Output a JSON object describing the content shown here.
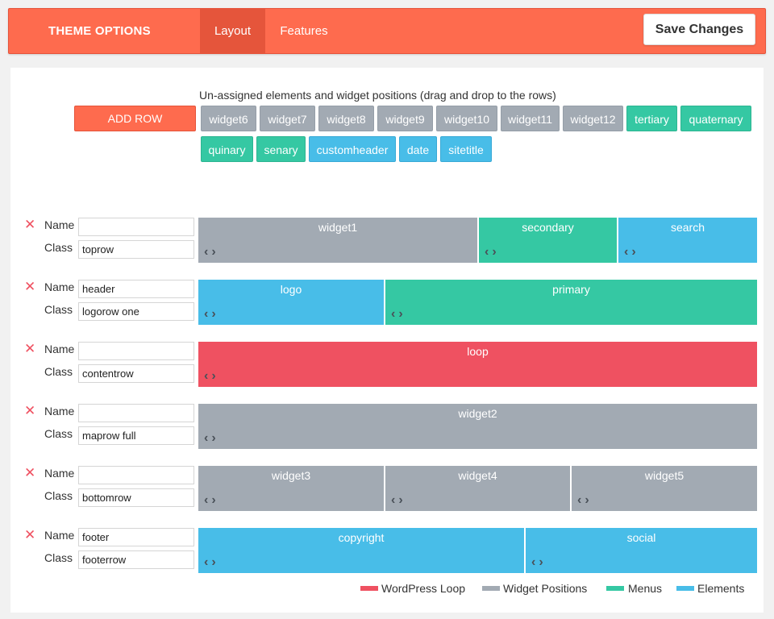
{
  "header": {
    "brand": "THEME OPTIONS",
    "tabs": [
      {
        "label": "Layout",
        "active": true
      },
      {
        "label": "Features",
        "active": false
      }
    ],
    "save_label": "Save Changes"
  },
  "pool": {
    "title": "Un-assigned elements and widget positions (drag and drop to the rows)",
    "add_row_label": "ADD ROW",
    "chips": [
      {
        "label": "widget6",
        "type": "widget"
      },
      {
        "label": "widget7",
        "type": "widget"
      },
      {
        "label": "widget8",
        "type": "widget"
      },
      {
        "label": "widget9",
        "type": "widget"
      },
      {
        "label": "widget10",
        "type": "widget"
      },
      {
        "label": "widget11",
        "type": "widget"
      },
      {
        "label": "widget12",
        "type": "widget"
      },
      {
        "label": "tertiary",
        "type": "menu"
      },
      {
        "label": "quaternary",
        "type": "menu"
      },
      {
        "label": "quinary",
        "type": "menu"
      },
      {
        "label": "senary",
        "type": "menu"
      },
      {
        "label": "customheader",
        "type": "element"
      },
      {
        "label": "date",
        "type": "element"
      },
      {
        "label": "sitetitle",
        "type": "element"
      }
    ]
  },
  "rows": [
    {
      "name_label": "Name",
      "class_label": "Class",
      "name": "",
      "class": "toprow",
      "blocks": [
        {
          "label": "widget1",
          "type": "widget"
        },
        {
          "label": "secondary",
          "type": "menu"
        },
        {
          "label": "search",
          "type": "element"
        }
      ]
    },
    {
      "name_label": "Name",
      "class_label": "Class",
      "name": "header",
      "class": "logorow one",
      "blocks": [
        {
          "label": "logo",
          "type": "element"
        },
        {
          "label": "primary",
          "type": "menu"
        }
      ]
    },
    {
      "name_label": "Name",
      "class_label": "Class",
      "name": "",
      "class": "contentrow",
      "blocks": [
        {
          "label": "loop",
          "type": "loop"
        }
      ]
    },
    {
      "name_label": "Name",
      "class_label": "Class",
      "name": "",
      "class": "maprow full",
      "blocks": [
        {
          "label": "widget2",
          "type": "widget"
        }
      ]
    },
    {
      "name_label": "Name",
      "class_label": "Class",
      "name": "",
      "class": "bottomrow",
      "blocks": [
        {
          "label": "widget3",
          "type": "widget"
        },
        {
          "label": "widget4",
          "type": "widget"
        },
        {
          "label": "widget5",
          "type": "widget"
        }
      ]
    },
    {
      "name_label": "Name",
      "class_label": "Class",
      "name": "footer",
      "class": "footerrow",
      "blocks": [
        {
          "label": "copyright",
          "type": "element"
        },
        {
          "label": "social",
          "type": "element"
        }
      ]
    }
  ],
  "legend": [
    {
      "label": "WordPress Loop",
      "color": "#ef5161"
    },
    {
      "label": "Widget Positions",
      "color": "#a2aab3"
    },
    {
      "label": "Menus",
      "color": "#35c8a3"
    },
    {
      "label": "Elements",
      "color": "#48bde8"
    }
  ],
  "icons": {
    "delete": "close-icon",
    "move_left": "chevron-left-icon",
    "move_right": "chevron-right-icon"
  },
  "colors": {
    "accent": "#fe6b4e",
    "widget": "#a2aab3",
    "menu": "#35c8a3",
    "element": "#48bde8",
    "loop": "#ef5161"
  }
}
